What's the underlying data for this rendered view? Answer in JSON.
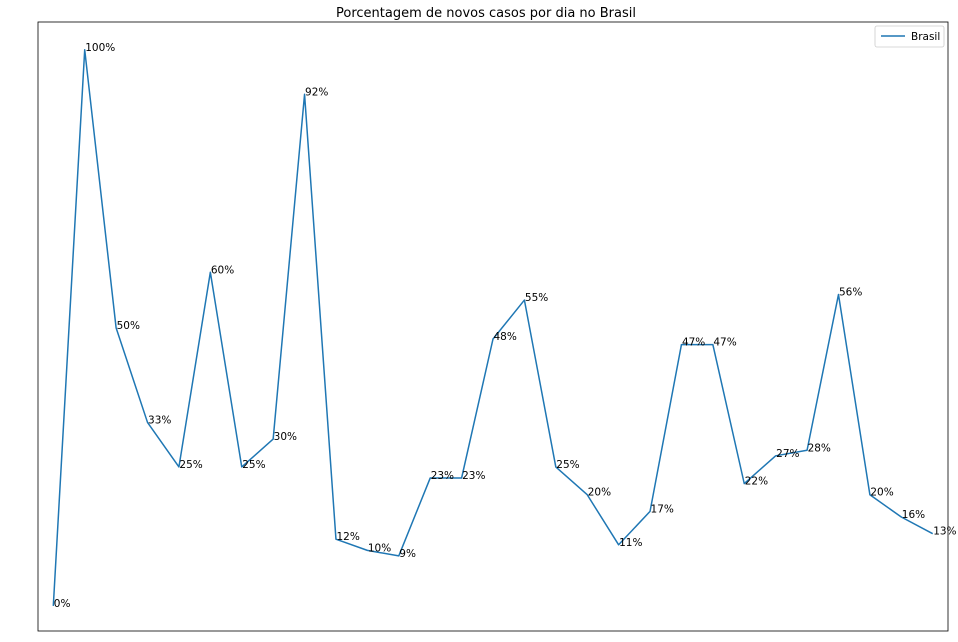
{
  "chart_data": {
    "type": "line",
    "title": "Porcentagem de novos casos por dia no Brasil",
    "xlabel": "",
    "ylabel": "",
    "ylim": [
      -0.045,
      1.05
    ],
    "grid": false,
    "legend_position": "top-right",
    "series": [
      {
        "name": "Brasil",
        "color": "#1f77b4",
        "values": [
          0,
          1.0,
          0.5,
          0.33,
          0.25,
          0.6,
          0.25,
          0.3,
          0.92,
          0.12,
          0.1,
          0.09,
          0.23,
          0.23,
          0.48,
          0.55,
          0.25,
          0.2,
          0.11,
          0.17,
          0.47,
          0.47,
          0.22,
          0.27,
          0.28,
          0.56,
          0.2,
          0.16,
          0.13
        ],
        "labels": [
          "0%",
          "100%",
          "50%",
          "33%",
          "25%",
          "60%",
          "25%",
          "30%",
          "92%",
          "12%",
          "10%",
          "9%",
          "23%",
          "23%",
          "48%",
          "55%",
          "25%",
          "20%",
          "11%",
          "17%",
          "47%",
          "47%",
          "22%",
          "27%",
          "28%",
          "56%",
          "20%",
          "16%",
          "13%"
        ]
      }
    ]
  }
}
